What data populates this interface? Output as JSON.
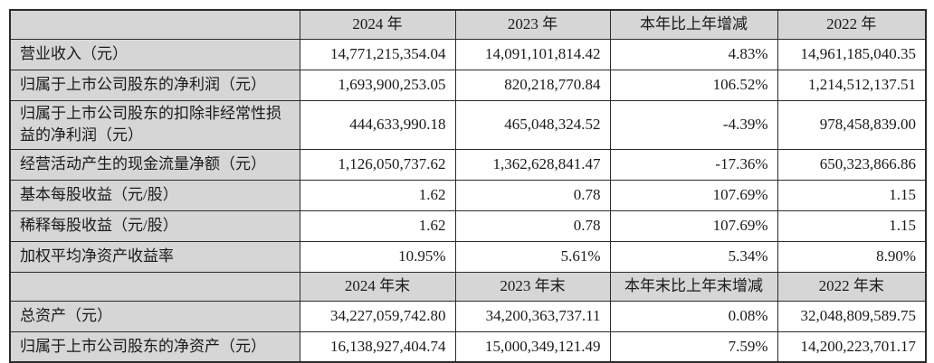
{
  "colors": {
    "header_bg": "#d6d6d6",
    "border": "#2b2b2b",
    "text": "#1a1a1a",
    "cell_bg": "#ffffff"
  },
  "table": {
    "name": "key-accounting-data-and-financial-indicators",
    "rows": [
      {
        "type": "header",
        "cells": [
          "",
          "2024 年",
          "2023 年",
          "本年比上年增减",
          "2022 年"
        ]
      },
      {
        "type": "data",
        "cells": [
          "营业收入（元）",
          "14,771,215,354.04",
          "14,091,101,814.42",
          "4.83%",
          "14,961,185,040.35"
        ]
      },
      {
        "type": "data",
        "cells": [
          "归属于上市公司股东的净利润（元）",
          "1,693,900,253.05",
          "820,218,770.84",
          "106.52%",
          "1,214,512,137.51"
        ]
      },
      {
        "type": "data",
        "tall": true,
        "cells": [
          "归属于上市公司股东的扣除非经常性损益的净利润（元）",
          "444,633,990.18",
          "465,048,324.52",
          "-4.39%",
          "978,458,839.00"
        ]
      },
      {
        "type": "data",
        "cells": [
          "经营活动产生的现金流量净额（元）",
          "1,126,050,737.62",
          "1,362,628,841.47",
          "-17.36%",
          "650,323,866.86"
        ]
      },
      {
        "type": "data",
        "cells": [
          "基本每股收益（元/股）",
          "1.62",
          "0.78",
          "107.69%",
          "1.15"
        ]
      },
      {
        "type": "data",
        "cells": [
          "稀释每股收益（元/股）",
          "1.62",
          "0.78",
          "107.69%",
          "1.15"
        ]
      },
      {
        "type": "data",
        "cells": [
          "加权平均净资产收益率",
          "10.95%",
          "5.61%",
          "5.34%",
          "8.90%"
        ]
      },
      {
        "type": "header",
        "cells": [
          "",
          "2024 年末",
          "2023 年末",
          "本年末比上年末增减",
          "2022 年末"
        ]
      },
      {
        "type": "data",
        "cells": [
          "总资产（元）",
          "34,227,059,742.80",
          "34,200,363,737.11",
          "0.08%",
          "32,048,809,589.75"
        ]
      },
      {
        "type": "data",
        "cells": [
          "归属于上市公司股东的净资产（元）",
          "16,138,927,404.74",
          "15,000,349,121.49",
          "7.59%",
          "14,200,223,701.17"
        ]
      }
    ]
  }
}
